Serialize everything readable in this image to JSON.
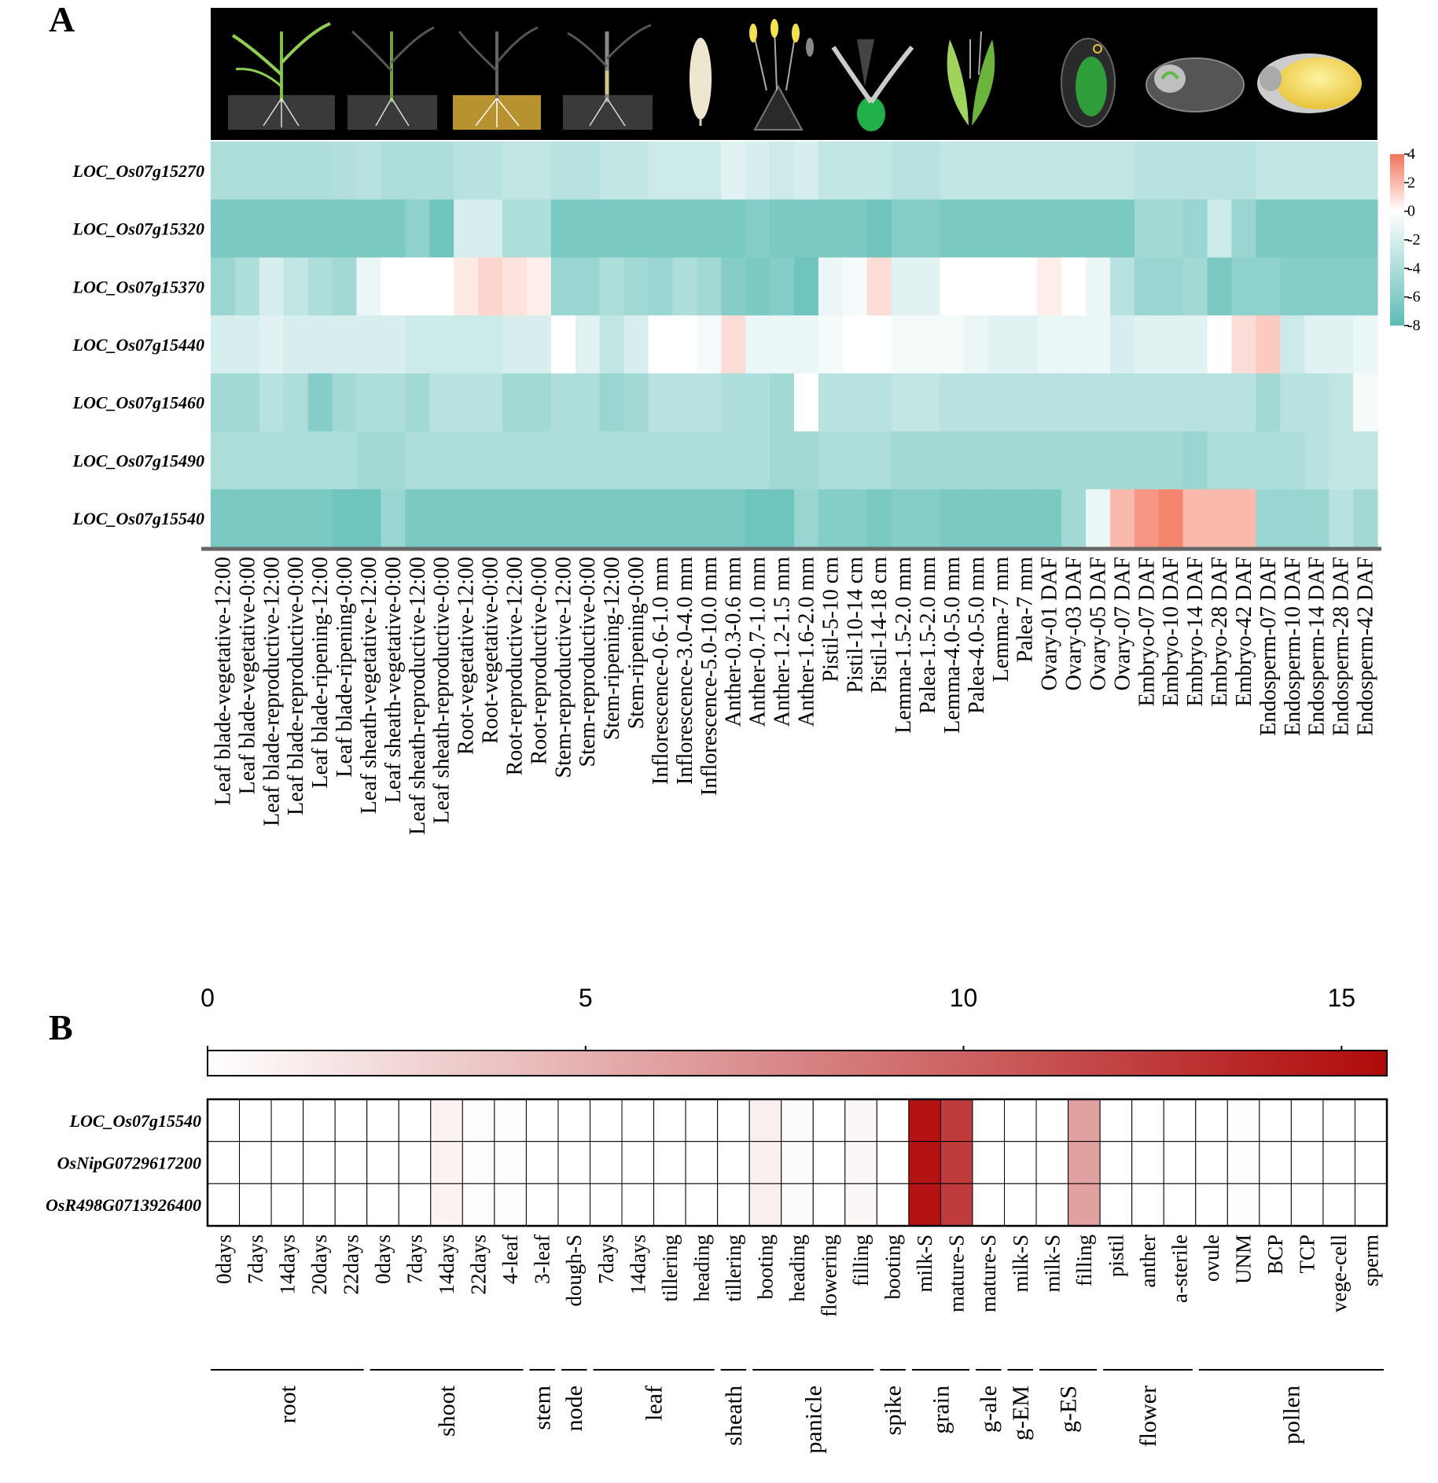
{
  "chart_data": [
    {
      "panel": "A",
      "type": "heatmap",
      "genes": [
        "LOC_Os07g15270",
        "LOC_Os07g15320",
        "LOC_Os07g15370",
        "LOC_Os07g15440",
        "LOC_Os07g15460",
        "LOC_Os07g15490",
        "LOC_Os07g15540"
      ],
      "samples": [
        "Leaf blade-vegetative-12:00",
        "Leaf blade-vegetative-0:00",
        "Leaf blade-reproductive-12:00",
        "Leaf blade-reproductive-0:00",
        "Leaf blade-ripening-12:00",
        "Leaf blade-ripening-0:00",
        "Leaf sheath-vegetative-12:00",
        "Leaf sheath-vegetative-0:00",
        "Leaf sheath-reproductive-12:00",
        "Leaf sheath-reproductive-0:00",
        "Root-vegetative-12:00",
        "Root-vegetative-0:00",
        "Root-reproductive-12:00",
        "Root-reproductive-0:00",
        "Stem-reproductive-12:00",
        "Stem-reproductive-0:00",
        "Stem-ripening-12:00",
        "Stem-ripening-0:00",
        "Inflorescence-0.6-1.0 mm",
        "Inflorescence-3.0-4.0 mm",
        "Inflorescence-5.0-10.0 mm",
        "Anther-0.3-0.6 mm",
        "Anther-0.7-1.0 mm",
        "Anther-1.2-1.5 mm",
        "Anther-1.6-2.0 mm",
        "Pistil-5-10 cm",
        "Pistil-10-14 cm",
        "Pistil-14-18 cm",
        "Lemma-1.5-2.0 mm",
        "Palea-1.5-2.0 mm",
        "Lemma-4.0-5.0 mm",
        "Palea-4.0-5.0 mm",
        "Lemma-7 mm",
        "Palea-7 mm",
        "Ovary-01 DAF",
        "Ovary-03 DAF",
        "Ovary-05 DAF",
        "Ovary-07 DAF",
        "Embryo-07 DAF",
        "Embryo-10 DAF",
        "Embryo-14 DAF",
        "Embryo-28 DAF",
        "Embryo-42 DAF",
        "Endosperm-07 DAF",
        "Endosperm-10 DAF",
        "Endosperm-14 DAF",
        "Endosperm-28 DAF",
        "Endosperm-42 DAF"
      ],
      "values": [
        [
          -4,
          -4,
          -4,
          -4,
          -4,
          -3.8,
          -3.5,
          -4,
          -4,
          -4,
          -3.5,
          -3.5,
          -3,
          -3,
          -3.5,
          -3.5,
          -3,
          -3,
          -2.5,
          -2.5,
          -2.5,
          -1.5,
          -2,
          -2.5,
          -2,
          -3,
          -3,
          -3,
          -3.5,
          -3.5,
          -3,
          -3,
          -3,
          -3,
          -3,
          -3,
          -3,
          -3,
          -3.5,
          -3.5,
          -3.5,
          -3.5,
          -3.5,
          -3,
          -3,
          -3,
          -3,
          -3
        ],
        [
          -6.5,
          -6.5,
          -6.5,
          -6.5,
          -6.5,
          -6.5,
          -6.5,
          -6.5,
          -5.5,
          -7,
          -2,
          -2,
          -4,
          -4,
          -6.5,
          -6.5,
          -6.5,
          -6.5,
          -6.5,
          -6.5,
          -6.5,
          -6.5,
          -6,
          -6.5,
          -6.5,
          -6.5,
          -6.5,
          -7,
          -6,
          -6,
          -6.5,
          -6.5,
          -6.5,
          -6.5,
          -6.5,
          -6.5,
          -6.5,
          -6.5,
          -4.5,
          -4.5,
          -5,
          -2.5,
          -5,
          -6.5,
          -6.5,
          -6.5,
          -6.5,
          -6.5
        ],
        [
          -5,
          -4,
          -2,
          -3,
          -4,
          -4.5,
          -1,
          0,
          0,
          0,
          0.6,
          1.2,
          0.8,
          0.5,
          -5,
          -5,
          -4,
          -4.5,
          -5,
          -4,
          -4.5,
          -6,
          -6.5,
          -6,
          -7,
          -1,
          -0.5,
          1,
          -1.5,
          -1.5,
          0,
          0,
          0,
          0,
          0.5,
          0,
          -1,
          -3.5,
          -5,
          -5,
          -4.5,
          -6.5,
          -5.5,
          -5.5,
          -6,
          -6,
          -6,
          -6
        ],
        [
          -2,
          -2,
          -1.5,
          -2,
          -2,
          -2,
          -2,
          -2,
          -2.5,
          -2.5,
          -2.5,
          -2.5,
          -2,
          -2,
          0,
          -1.5,
          -3,
          -2,
          0,
          0,
          -0.5,
          1,
          -1,
          -1,
          -1,
          -0.5,
          0,
          0,
          -0.5,
          -0.5,
          -0.5,
          -1,
          -1.5,
          -1.5,
          -1,
          -1,
          -1,
          -2,
          -1.5,
          -1.5,
          -1.5,
          0,
          1,
          1.5,
          -2.5,
          -1.5,
          -1.5,
          -1
        ],
        [
          -4.5,
          -4.5,
          -3.5,
          -4,
          -6,
          -4.5,
          -4,
          -4,
          -4.5,
          -3.5,
          -3.5,
          -3.5,
          -4.5,
          -4.5,
          -4,
          -4,
          -5,
          -4.5,
          -3.5,
          -3.5,
          -3.5,
          -4,
          -4,
          -4.5,
          0,
          -3.5,
          -3.5,
          -3.5,
          -3,
          -3,
          -3.5,
          -3.5,
          -3.5,
          -3.5,
          -3.5,
          -3.5,
          -3.5,
          -3.5,
          -3.5,
          -3.5,
          -3.5,
          -3.5,
          -3.5,
          -4.5,
          -3.5,
          -3.5,
          -3,
          -0.5
        ],
        [
          -4,
          -4,
          -4,
          -4,
          -4,
          -4,
          -4.5,
          -4.5,
          -4,
          -4,
          -4,
          -4,
          -4,
          -4,
          -4,
          -4,
          -4,
          -4,
          -4,
          -4,
          -4,
          -4,
          -4,
          -4.5,
          -4.5,
          -4,
          -4,
          -4,
          -4.5,
          -4.5,
          -4.5,
          -4.5,
          -4.5,
          -4.5,
          -4.5,
          -4.5,
          -4.5,
          -4.5,
          -4.5,
          -4.5,
          -5,
          -4,
          -4,
          -4,
          -4,
          -3.5,
          -3,
          -3
        ],
        [
          -6.5,
          -6.5,
          -6.5,
          -6.5,
          -6.5,
          -7,
          -7,
          -5,
          -6.5,
          -6.5,
          -6.5,
          -6.5,
          -6.5,
          -6.5,
          -6.5,
          -6.5,
          -6.5,
          -6.5,
          -6.5,
          -6.5,
          -6.5,
          -6.5,
          -7,
          -7,
          -5,
          -6,
          -6,
          -6.5,
          -6,
          -6,
          -6.5,
          -6.5,
          -6.5,
          -6.5,
          -6.5,
          -4.5,
          -1,
          2,
          3,
          3.5,
          2,
          2,
          2,
          -5,
          -5,
          -5,
          -3.5,
          -4.5
        ]
      ],
      "colorbar": {
        "min": -8,
        "max": 4,
        "ticks": [
          "4",
          "2",
          "0",
          "-2",
          "-4",
          "-6",
          "-8"
        ]
      },
      "colors": {
        "low": "#5cbcb5",
        "mid": "#ffffff",
        "high": "#f4735a"
      }
    },
    {
      "panel": "B",
      "type": "heatmap",
      "genes": [
        "LOC_Os07g15540",
        "OsNipG0729617200",
        "OsR498G0713926400"
      ],
      "samples": [
        "0days",
        "7days",
        "14days",
        "20days",
        "22days",
        "0days",
        "7days",
        "14days",
        "22days",
        "4-leaf",
        "3-leaf",
        "dough-S",
        "7days",
        "14days",
        "tillering",
        "heading",
        "tillering",
        "booting",
        "heading",
        "flowering",
        "filling",
        "booting",
        "milk-S",
        "mature-S",
        "mature-S",
        "milk-S",
        "milk-S",
        "filling",
        "pistil",
        "anther",
        "a-sterile",
        "ovule",
        "UNM",
        "BCP",
        "TCP",
        "vege-cell",
        "sperm"
      ],
      "groups": [
        {
          "name": "root",
          "start": 0,
          "end": 4
        },
        {
          "name": "shoot",
          "start": 5,
          "end": 9
        },
        {
          "name": "stem",
          "start": 10,
          "end": 10
        },
        {
          "name": "node",
          "start": 11,
          "end": 11
        },
        {
          "name": "leaf",
          "start": 12,
          "end": 15
        },
        {
          "name": "sheath",
          "start": 16,
          "end": 16
        },
        {
          "name": "panicle",
          "start": 17,
          "end": 20
        },
        {
          "name": "spike",
          "start": 21,
          "end": 21
        },
        {
          "name": "grain",
          "start": 22,
          "end": 23
        },
        {
          "name": "g-ale",
          "start": 24,
          "end": 24
        },
        {
          "name": "g-EM",
          "start": 25,
          "end": 25
        },
        {
          "name": "g-ES",
          "start": 26,
          "end": 27
        },
        {
          "name": "flower",
          "start": 28,
          "end": 30
        },
        {
          "name": "pollen",
          "start": 31,
          "end": 36
        }
      ],
      "values": [
        [
          0,
          0,
          0,
          0,
          0,
          0,
          0,
          0.8,
          0.2,
          0.1,
          0,
          0,
          0,
          0,
          0,
          0,
          0,
          1,
          0.3,
          0,
          0.5,
          0,
          15,
          12.5,
          0,
          0,
          0,
          6,
          0,
          0,
          0,
          0,
          0.1,
          0,
          0,
          0,
          0
        ],
        [
          0,
          0,
          0,
          0,
          0,
          0,
          0,
          0.8,
          0.2,
          0.1,
          0,
          0,
          0,
          0,
          0,
          0,
          0,
          1,
          0.3,
          0,
          0.5,
          0,
          15,
          12.5,
          0,
          0,
          0,
          6,
          0,
          0,
          0,
          0,
          0.1,
          0,
          0,
          0,
          0
        ],
        [
          0,
          0,
          0,
          0,
          0,
          0,
          0,
          0.8,
          0.2,
          0.1,
          0,
          0,
          0,
          0,
          0,
          0,
          0,
          1,
          0.3,
          0,
          0.5,
          0,
          15,
          12.5,
          0,
          0,
          0,
          6,
          0,
          0,
          0,
          0,
          0.1,
          0,
          0,
          0,
          0
        ]
      ],
      "colorbar": {
        "min": 0,
        "max": 15.6,
        "ticks": [
          0,
          5,
          10,
          15
        ],
        "tick_labels": [
          "0",
          "5",
          "10",
          "15"
        ]
      },
      "colors": {
        "low": "#ffffff",
        "high": "#b00a0a"
      }
    }
  ],
  "labels": {
    "panel_a": "A",
    "panel_b": "B"
  },
  "illustrations": [
    "vegetative-plant-icon",
    "reproductive-plant-icon",
    "root-plant-icon",
    "ripening-plant-icon",
    "inflorescence-icon",
    "anther-icon",
    "pistil-icon",
    "lemma-palea-icon",
    "ovary-icon",
    "embryo-icon",
    "endosperm-icon"
  ]
}
